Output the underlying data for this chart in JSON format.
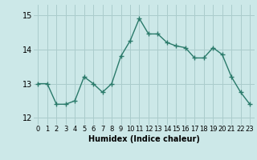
{
  "x": [
    0,
    1,
    2,
    3,
    4,
    5,
    6,
    7,
    8,
    9,
    10,
    11,
    12,
    13,
    14,
    15,
    16,
    17,
    18,
    19,
    20,
    21,
    22,
    23
  ],
  "y": [
    13.0,
    13.0,
    12.4,
    12.4,
    12.5,
    13.2,
    13.0,
    12.75,
    13.0,
    13.8,
    14.25,
    14.9,
    14.45,
    14.45,
    14.2,
    14.1,
    14.05,
    13.75,
    13.75,
    14.05,
    13.85,
    13.2,
    12.75,
    12.4
  ],
  "xlabel": "Humidex (Indice chaleur)",
  "ylim": [
    11.8,
    15.3
  ],
  "yticks": [
    12,
    13,
    14,
    15
  ],
  "xticks": [
    0,
    1,
    2,
    3,
    4,
    5,
    6,
    7,
    8,
    9,
    10,
    11,
    12,
    13,
    14,
    15,
    16,
    17,
    18,
    19,
    20,
    21,
    22,
    23
  ],
  "line_color": "#2a7a6a",
  "bg_color": "#cce8e8",
  "grid_color": "#aacccc",
  "xlabel_fontsize": 7,
  "tick_fontsize": 6
}
